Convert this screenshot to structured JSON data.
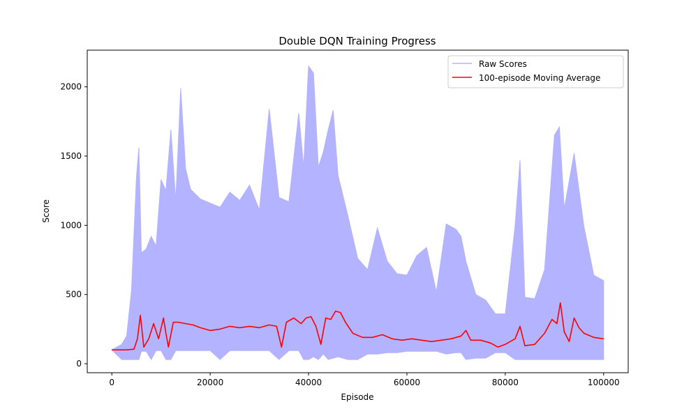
{
  "chart_data": {
    "type": "line",
    "title": "Double DQN Training Progress",
    "xlabel": "Episode",
    "ylabel": "Score",
    "xlim": [
      -5000,
      105000
    ],
    "ylim": [
      -65,
      2265
    ],
    "x_ticks": [
      0,
      20000,
      40000,
      60000,
      80000,
      100000
    ],
    "x_tick_labels": [
      "0",
      "20000",
      "40000",
      "60000",
      "80000",
      "100000"
    ],
    "y_ticks": [
      0,
      500,
      1000,
      1500,
      2000
    ],
    "y_tick_labels": [
      "0",
      "500",
      "1000",
      "1500",
      "2000"
    ],
    "grid": false,
    "legend_position": "top-right",
    "colors": {
      "raw": "#b3b3ff",
      "avg": "#ff0000",
      "axes": "#000000"
    },
    "series": [
      {
        "name": "Raw Scores",
        "style": "envelope",
        "x": [
          0,
          2000,
          3000,
          4000,
          5000,
          5500,
          6000,
          7000,
          8000,
          9000,
          10000,
          11000,
          12000,
          13000,
          14000,
          15000,
          16000,
          18000,
          20000,
          22000,
          24000,
          26000,
          28000,
          30000,
          32000,
          34000,
          36000,
          38000,
          39000,
          40000,
          41000,
          42000,
          43000,
          44000,
          45000,
          46000,
          48000,
          50000,
          52000,
          54000,
          56000,
          58000,
          60000,
          62000,
          64000,
          66000,
          68000,
          70000,
          71000,
          72000,
          74000,
          76000,
          78000,
          80000,
          82000,
          83000,
          84000,
          86000,
          88000,
          90000,
          91000,
          92000,
          94000,
          96000,
          98000,
          100000
        ],
        "high": [
          100,
          140,
          200,
          530,
          1350,
          1560,
          800,
          830,
          920,
          850,
          1330,
          1250,
          1690,
          1180,
          1990,
          1410,
          1260,
          1190,
          1160,
          1130,
          1240,
          1180,
          1290,
          1110,
          1840,
          1200,
          1170,
          1810,
          1420,
          2150,
          2100,
          1420,
          1530,
          1690,
          1830,
          1360,
          1070,
          760,
          680,
          980,
          740,
          650,
          640,
          780,
          840,
          520,
          1010,
          970,
          920,
          740,
          500,
          460,
          360,
          360,
          1000,
          1470,
          480,
          470,
          680,
          1650,
          1710,
          1120,
          1520,
          990,
          640,
          600
        ],
        "low": [
          100,
          30,
          30,
          30,
          30,
          30,
          90,
          90,
          30,
          95,
          95,
          30,
          30,
          95,
          95,
          95,
          95,
          95,
          95,
          30,
          95,
          95,
          95,
          95,
          95,
          30,
          95,
          95,
          30,
          30,
          50,
          30,
          70,
          30,
          40,
          50,
          30,
          30,
          70,
          70,
          80,
          80,
          90,
          90,
          90,
          90,
          70,
          80,
          80,
          30,
          40,
          40,
          80,
          80,
          30,
          30,
          30,
          30,
          30,
          30,
          30,
          30,
          30,
          30,
          30,
          30
        ]
      },
      {
        "name": "100-episode Moving Average",
        "style": "line",
        "x": [
          0,
          3000,
          4500,
          5200,
          5800,
          6500,
          7500,
          8500,
          9500,
          10500,
          11000,
          11500,
          12500,
          13500,
          15000,
          16500,
          18000,
          20000,
          22000,
          24000,
          26000,
          28000,
          30000,
          32000,
          33500,
          34500,
          35500,
          37000,
          38500,
          39500,
          40500,
          41500,
          42500,
          43500,
          44500,
          45500,
          46500,
          47500,
          49000,
          51000,
          53000,
          55000,
          57000,
          59000,
          61000,
          63000,
          65000,
          67000,
          69000,
          71000,
          72000,
          73000,
          75000,
          77000,
          78500,
          80000,
          82000,
          83000,
          84000,
          86000,
          88000,
          89500,
          90500,
          91200,
          92000,
          93000,
          94000,
          95000,
          96000,
          98000,
          100000
        ],
        "values": [
          100,
          100,
          105,
          180,
          350,
          120,
          180,
          290,
          180,
          330,
          220,
          120,
          300,
          300,
          290,
          280,
          260,
          240,
          250,
          270,
          260,
          270,
          260,
          280,
          270,
          120,
          300,
          330,
          290,
          330,
          340,
          270,
          140,
          330,
          320,
          380,
          370,
          300,
          220,
          190,
          190,
          210,
          180,
          170,
          180,
          170,
          160,
          170,
          180,
          200,
          240,
          170,
          170,
          150,
          120,
          140,
          180,
          270,
          130,
          140,
          220,
          320,
          290,
          440,
          230,
          160,
          330,
          260,
          220,
          190,
          180
        ]
      }
    ]
  }
}
